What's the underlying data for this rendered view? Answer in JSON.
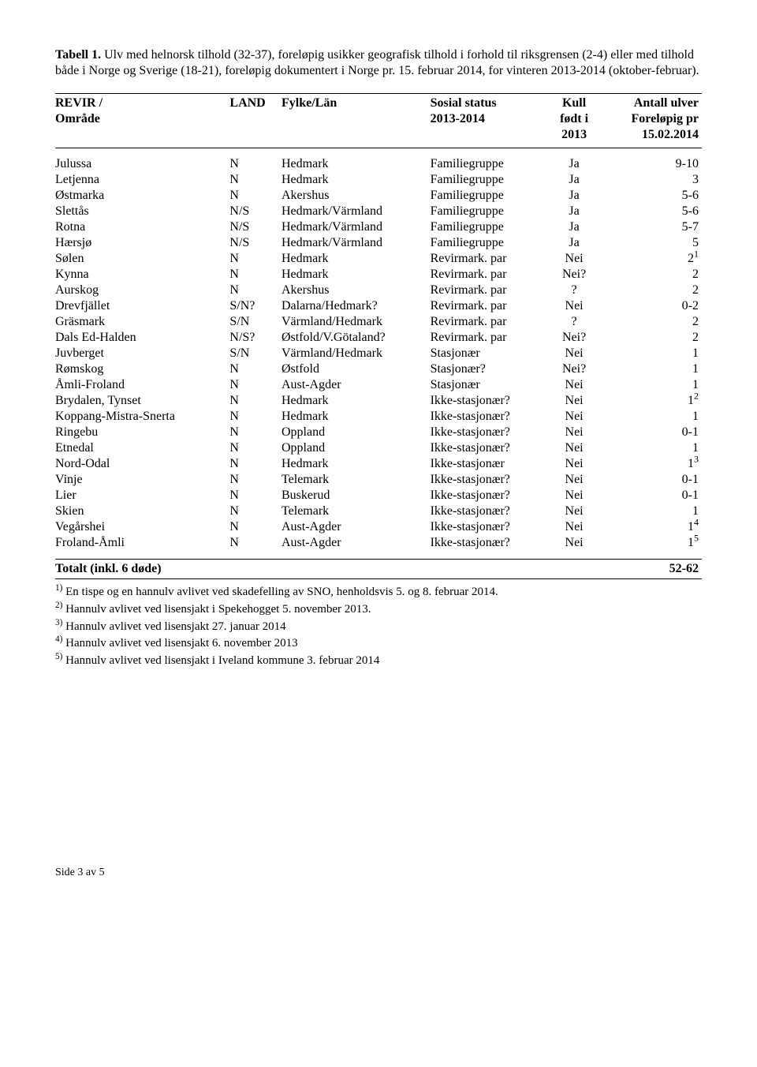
{
  "caption": {
    "label": "Tabell 1.",
    "text": " Ulv med helnorsk tilhold (32-37), foreløpig usikker geografisk tilhold i forhold til riksgrensen (2-4) eller med tilhold både i Norge og Sverige (18-21), foreløpig dokumentert i Norge pr. 15. februar 2014, for vinteren 2013-2014 (oktober-februar)."
  },
  "headers": {
    "c1a": "REVIR /",
    "c1b": "Område",
    "c2": "LAND",
    "c3": "Fylke/Län",
    "c4a": "Sosial status",
    "c4b": "2013-2014",
    "c5a": "Kull",
    "c5b": "født i",
    "c5c": "2013",
    "c6a": "Antall ulver",
    "c6b": "Foreløpig pr",
    "c6c": "15.02.2014"
  },
  "rows": [
    {
      "r": "Julussa",
      "l": "N",
      "f": "Hedmark",
      "s": "Familiegruppe",
      "k": "Ja",
      "a": "9-10",
      "sup": ""
    },
    {
      "r": "Letjenna",
      "l": "N",
      "f": "Hedmark",
      "s": "Familiegruppe",
      "k": "Ja",
      "a": "3",
      "sup": ""
    },
    {
      "r": "Østmarka",
      "l": "N",
      "f": "Akershus",
      "s": "Familiegruppe",
      "k": "Ja",
      "a": "5-6",
      "sup": ""
    },
    {
      "r": "Slettås",
      "l": "N/S",
      "f": "Hedmark/Värmland",
      "s": "Familiegruppe",
      "k": "Ja",
      "a": "5-6",
      "sup": ""
    },
    {
      "r": "Rotna",
      "l": "N/S",
      "f": "Hedmark/Värmland",
      "s": "Familiegruppe",
      "k": "Ja",
      "a": "5-7",
      "sup": ""
    },
    {
      "r": "Hærsjø",
      "l": "N/S",
      "f": "Hedmark/Värmland",
      "s": "Familiegruppe",
      "k": "Ja",
      "a": "5",
      "sup": ""
    },
    {
      "r": "Sølen",
      "l": "N",
      "f": "Hedmark",
      "s": "Revirmark. par",
      "k": "Nei",
      "a": "2",
      "sup": "1"
    },
    {
      "r": "Kynna",
      "l": "N",
      "f": "Hedmark",
      "s": "Revirmark. par",
      "k": "Nei?",
      "a": "2",
      "sup": ""
    },
    {
      "r": "Aurskog",
      "l": "N",
      "f": "Akershus",
      "s": "Revirmark. par",
      "k": "?",
      "a": "2",
      "sup": ""
    },
    {
      "r": "Drevfjället",
      "l": "S/N?",
      "f": "Dalarna/Hedmark?",
      "s": "Revirmark. par",
      "k": "Nei",
      "a": "0-2",
      "sup": ""
    },
    {
      "r": "Gräsmark",
      "l": "S/N",
      "f": "Värmland/Hedmark",
      "s": "Revirmark. par",
      "k": "?",
      "a": "2",
      "sup": ""
    },
    {
      "r": "Dals Ed-Halden",
      "l": "N/S?",
      "f": "Østfold/V.Götaland?",
      "s": "Revirmark. par",
      "k": "Nei?",
      "a": "2",
      "sup": ""
    },
    {
      "r": "Juvberget",
      "l": "S/N",
      "f": "Värmland/Hedmark",
      "s": "Stasjonær",
      "k": "Nei",
      "a": "1",
      "sup": ""
    },
    {
      "r": "Rømskog",
      "l": "N",
      "f": "Østfold",
      "s": "Stasjonær?",
      "k": "Nei?",
      "a": "1",
      "sup": ""
    },
    {
      "r": "Åmli-Froland",
      "l": "N",
      "f": "Aust-Agder",
      "s": "Stasjonær",
      "k": "Nei",
      "a": "1",
      "sup": ""
    },
    {
      "r": "Brydalen, Tynset",
      "l": "N",
      "f": "Hedmark",
      "s": "Ikke-stasjonær?",
      "k": "Nei",
      "a": "1",
      "sup": "2"
    },
    {
      "r": "Koppang-Mistra-Snerta",
      "l": "N",
      "f": "Hedmark",
      "s": "Ikke-stasjonær?",
      "k": "Nei",
      "a": "1",
      "sup": ""
    },
    {
      "r": "Ringebu",
      "l": "N",
      "f": "Oppland",
      "s": "Ikke-stasjonær?",
      "k": "Nei",
      "a": "0-1",
      "sup": ""
    },
    {
      "r": "Etnedal",
      "l": "N",
      "f": "Oppland",
      "s": "Ikke-stasjonær?",
      "k": "Nei",
      "a": "1",
      "sup": ""
    },
    {
      "r": "Nord-Odal",
      "l": "N",
      "f": "Hedmark",
      "s": "Ikke-stasjonær",
      "k": "Nei",
      "a": "1",
      "sup": "3"
    },
    {
      "r": "Vinje",
      "l": "N",
      "f": "Telemark",
      "s": "Ikke-stasjonær?",
      "k": "Nei",
      "a": "0-1",
      "sup": ""
    },
    {
      "r": "Lier",
      "l": "N",
      "f": "Buskerud",
      "s": "Ikke-stasjonær?",
      "k": "Nei",
      "a": "0-1",
      "sup": ""
    },
    {
      "r": "Skien",
      "l": "N",
      "f": "Telemark",
      "s": "Ikke-stasjonær?",
      "k": "Nei",
      "a": "1",
      "sup": ""
    },
    {
      "r": "Vegårshei",
      "l": "N",
      "f": "Aust-Agder",
      "s": "Ikke-stasjonær?",
      "k": "Nei",
      "a": "1",
      "sup": "4"
    },
    {
      "r": "Froland-Åmli",
      "l": "N",
      "f": "Aust-Agder",
      "s": "Ikke-stasjonær?",
      "k": "Nei",
      "a": "1",
      "sup": "5"
    }
  ],
  "total": {
    "label": "Totalt (inkl. 6 døde)",
    "value": "52-62"
  },
  "footnotes": [
    {
      "n": "1)",
      "t": " En tispe og en hannulv avlivet ved skadefelling av SNO, henholdsvis 5. og 8. februar 2014."
    },
    {
      "n": "2)",
      "t": " Hannulv avlivet ved lisensjakt i Spekehogget 5. november 2013."
    },
    {
      "n": "3)",
      "t": " Hannulv avlivet ved lisensjakt 27. januar 2014"
    },
    {
      "n": "4)",
      "t": " Hannulv avlivet ved lisensjakt 6. november 2013"
    },
    {
      "n": "5)",
      "t": " Hannulv avlivet ved lisensjakt i Iveland kommune 3. februar 2014"
    }
  ],
  "pagefoot": "Side 3 av 5"
}
